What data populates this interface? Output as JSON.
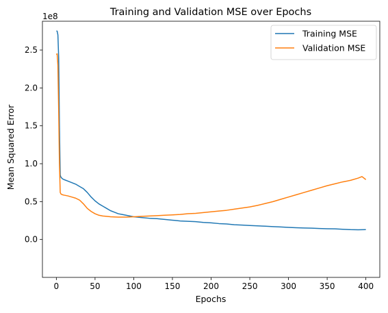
{
  "chart_data": {
    "type": "line",
    "title": "Training and Validation MSE over Epochs",
    "xlabel": "Epochs",
    "ylabel": "Mean Squared Error",
    "y_offset_label": "1e8",
    "xlim": [
      -18,
      418
    ],
    "ylim": [
      -0.5,
      2.88
    ],
    "x_ticks": [
      0,
      50,
      100,
      150,
      200,
      250,
      300,
      350,
      400
    ],
    "x_tick_labels": [
      "0",
      "50",
      "100",
      "150",
      "200",
      "250",
      "300",
      "350",
      "400"
    ],
    "y_ticks": [
      0.0,
      0.5,
      1.0,
      1.5,
      2.0,
      2.5
    ],
    "y_tick_labels": [
      "0.0",
      "0.5",
      "1.0",
      "1.5",
      "2.0",
      "2.5"
    ],
    "grid": false,
    "legend_position": "top-right",
    "series": [
      {
        "name": "Training MSE",
        "color": "#1f77b4",
        "points": [
          [
            0,
            2.75
          ],
          [
            1,
            2.75
          ],
          [
            2,
            2.7
          ],
          [
            3,
            2.4
          ],
          [
            4,
            1.5
          ],
          [
            5,
            0.85
          ],
          [
            6,
            0.82
          ],
          [
            8,
            0.8
          ],
          [
            10,
            0.79
          ],
          [
            15,
            0.77
          ],
          [
            20,
            0.75
          ],
          [
            25,
            0.73
          ],
          [
            30,
            0.7
          ],
          [
            35,
            0.67
          ],
          [
            40,
            0.62
          ],
          [
            45,
            0.56
          ],
          [
            50,
            0.51
          ],
          [
            55,
            0.47
          ],
          [
            60,
            0.44
          ],
          [
            65,
            0.41
          ],
          [
            70,
            0.38
          ],
          [
            75,
            0.36
          ],
          [
            80,
            0.34
          ],
          [
            85,
            0.33
          ],
          [
            90,
            0.32
          ],
          [
            95,
            0.31
          ],
          [
            100,
            0.3
          ],
          [
            110,
            0.29
          ],
          [
            120,
            0.28
          ],
          [
            130,
            0.275
          ],
          [
            140,
            0.265
          ],
          [
            150,
            0.255
          ],
          [
            160,
            0.245
          ],
          [
            170,
            0.24
          ],
          [
            180,
            0.235
          ],
          [
            190,
            0.225
          ],
          [
            200,
            0.22
          ],
          [
            210,
            0.21
          ],
          [
            220,
            0.205
          ],
          [
            230,
            0.195
          ],
          [
            240,
            0.19
          ],
          [
            250,
            0.185
          ],
          [
            260,
            0.18
          ],
          [
            270,
            0.175
          ],
          [
            280,
            0.17
          ],
          [
            290,
            0.165
          ],
          [
            300,
            0.16
          ],
          [
            310,
            0.155
          ],
          [
            320,
            0.152
          ],
          [
            330,
            0.15
          ],
          [
            340,
            0.145
          ],
          [
            350,
            0.142
          ],
          [
            360,
            0.14
          ],
          [
            370,
            0.135
          ],
          [
            380,
            0.13
          ],
          [
            390,
            0.128
          ],
          [
            400,
            0.13
          ]
        ]
      },
      {
        "name": "Validation MSE",
        "color": "#ff7f0e",
        "points": [
          [
            0,
            2.44
          ],
          [
            1,
            2.45
          ],
          [
            2,
            2.3
          ],
          [
            3,
            1.7
          ],
          [
            4,
            1.0
          ],
          [
            5,
            0.62
          ],
          [
            6,
            0.6
          ],
          [
            8,
            0.59
          ],
          [
            10,
            0.585
          ],
          [
            15,
            0.575
          ],
          [
            20,
            0.56
          ],
          [
            25,
            0.545
          ],
          [
            30,
            0.52
          ],
          [
            35,
            0.47
          ],
          [
            40,
            0.41
          ],
          [
            45,
            0.37
          ],
          [
            50,
            0.34
          ],
          [
            55,
            0.32
          ],
          [
            60,
            0.31
          ],
          [
            65,
            0.305
          ],
          [
            70,
            0.3
          ],
          [
            80,
            0.295
          ],
          [
            90,
            0.295
          ],
          [
            100,
            0.3
          ],
          [
            110,
            0.305
          ],
          [
            120,
            0.31
          ],
          [
            130,
            0.315
          ],
          [
            140,
            0.32
          ],
          [
            150,
            0.325
          ],
          [
            160,
            0.33
          ],
          [
            170,
            0.34
          ],
          [
            180,
            0.345
          ],
          [
            190,
            0.355
          ],
          [
            200,
            0.365
          ],
          [
            210,
            0.375
          ],
          [
            220,
            0.385
          ],
          [
            230,
            0.4
          ],
          [
            240,
            0.415
          ],
          [
            250,
            0.43
          ],
          [
            260,
            0.45
          ],
          [
            270,
            0.475
          ],
          [
            280,
            0.5
          ],
          [
            290,
            0.53
          ],
          [
            300,
            0.56
          ],
          [
            310,
            0.59
          ],
          [
            320,
            0.62
          ],
          [
            330,
            0.65
          ],
          [
            340,
            0.68
          ],
          [
            350,
            0.71
          ],
          [
            360,
            0.735
          ],
          [
            370,
            0.76
          ],
          [
            380,
            0.78
          ],
          [
            390,
            0.81
          ],
          [
            395,
            0.83
          ],
          [
            400,
            0.79
          ]
        ]
      }
    ]
  }
}
